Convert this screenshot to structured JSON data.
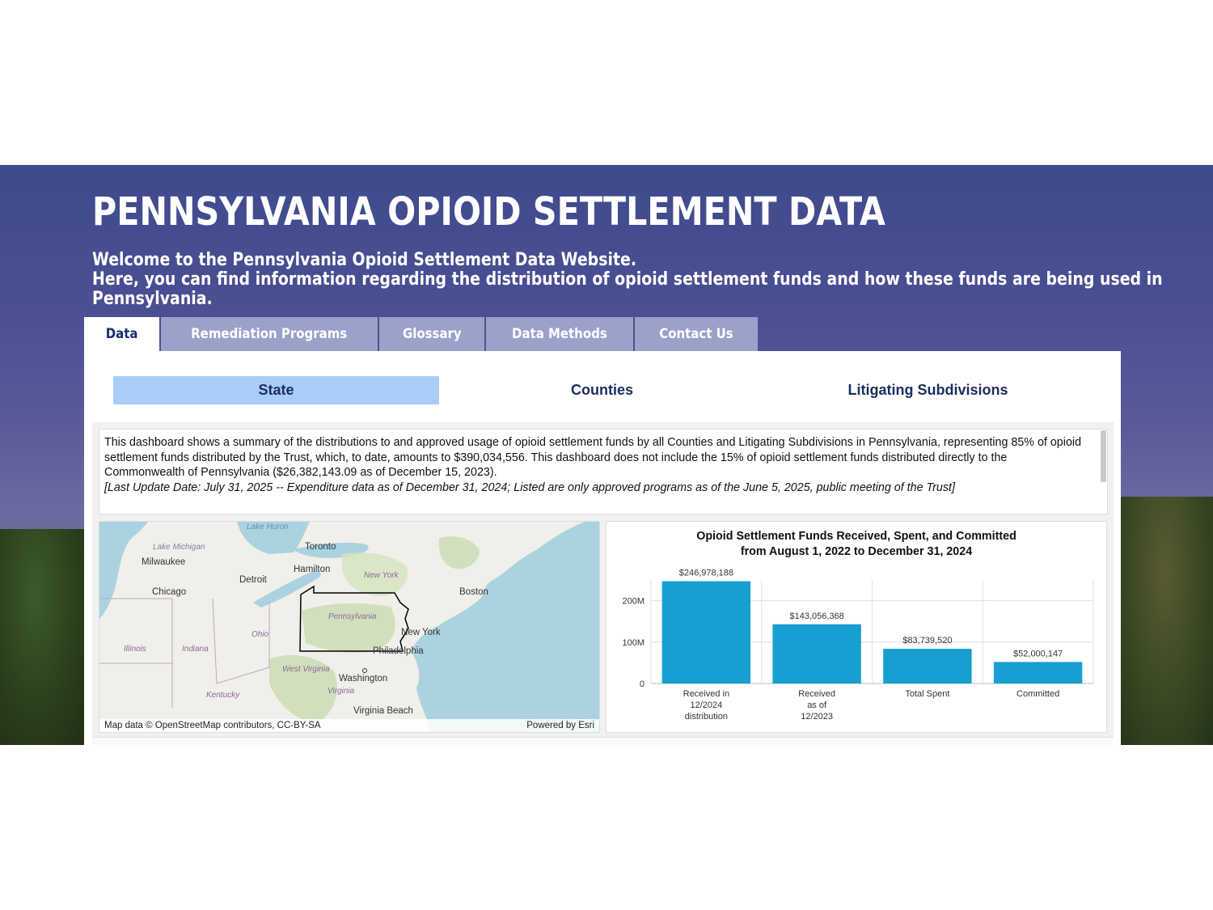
{
  "header": {
    "title": "PENNSYLVANIA OPIOID SETTLEMENT DATA",
    "welcome_line1": "Welcome to the Pennsylvania Opioid Settlement Data Website.",
    "welcome_line2": "Here, you can find information regarding the distribution of opioid settlement funds and how these funds are being used in",
    "welcome_line3": "Pennsylvania."
  },
  "tabs": [
    {
      "label": "Data",
      "active": true
    },
    {
      "label": "Remediation Programs",
      "active": false
    },
    {
      "label": "Glossary",
      "active": false
    },
    {
      "label": "Data Methods",
      "active": false
    },
    {
      "label": "Contact Us",
      "active": false
    }
  ],
  "subtabs": [
    {
      "label": "State",
      "active": true
    },
    {
      "label": "Counties",
      "active": false
    },
    {
      "label": "Litigating Subdivisions",
      "active": false
    }
  ],
  "description": {
    "text": "This dashboard shows a summary of the distributions to and approved usage of opioid settlement funds by all Counties and Litigating Subdivisions in Pennsylvania, representing 85% of opioid settlement funds distributed by the Trust, which, to date, amounts to $390,034,556. This dashboard does not include the 15% of opioid settlement funds distributed directly to the Commonwealth of Pennsylvania ($26,382,143.09 as of December 15, 2023).",
    "note": "[Last Update Date: July 31, 2025 -- Expenditure data as of December 31, 2024; Listed are only approved programs as of the June 5, 2025, public meeting of the Trust]"
  },
  "map": {
    "labels": {
      "lake_huron": "Lake Huron",
      "lake_michigan": "Lake Michigan",
      "toronto": "Toronto",
      "milwaukee": "Milwaukee",
      "hamilton": "Hamilton",
      "detroit": "Detroit",
      "new_york_state": "New York",
      "chicago": "Chicago",
      "boston": "Boston",
      "pennsylvania": "Pennsylvania",
      "ohio": "Ohio",
      "new_york_city": "New York",
      "illinois": "Illinois",
      "indiana": "Indiana",
      "philadelphia": "Philadelphia",
      "west_virginia": "West Virginia",
      "washington": "Washington",
      "virginia": "Virginia",
      "kentucky": "Kentucky",
      "virginia_beach": "Virginia Beach"
    },
    "attribution": "Map data © OpenStreetMap contributors, CC-BY-SA",
    "powered_by": "Powered by Esri",
    "colors": {
      "land": "#f1efe9",
      "water": "#aad3df",
      "forest": "#c8dcb0",
      "outline": "#000000"
    }
  },
  "chart_data": {
    "type": "bar",
    "title_line1": "Opioid Settlement Funds Received, Spent, and Committed",
    "title_line2": "from August 1, 2022 to December 31, 2024",
    "categories": [
      [
        "Received in",
        "12/2024",
        "distribution"
      ],
      [
        "Received",
        "as of",
        "12/2023"
      ],
      [
        "Total Spent"
      ],
      [
        "Committed"
      ]
    ],
    "values": [
      246978188,
      143056368,
      83739520,
      52000147
    ],
    "value_labels": [
      "$246,978,188",
      "$143,056,368",
      "$83,739,520",
      "$52,000,147"
    ],
    "yticks": [
      0,
      100000000,
      200000000
    ],
    "ytick_labels": [
      "0",
      "100M",
      "200M"
    ],
    "ylim": [
      0,
      250000000
    ],
    "grid": true,
    "bar_color": "#169fd0"
  }
}
